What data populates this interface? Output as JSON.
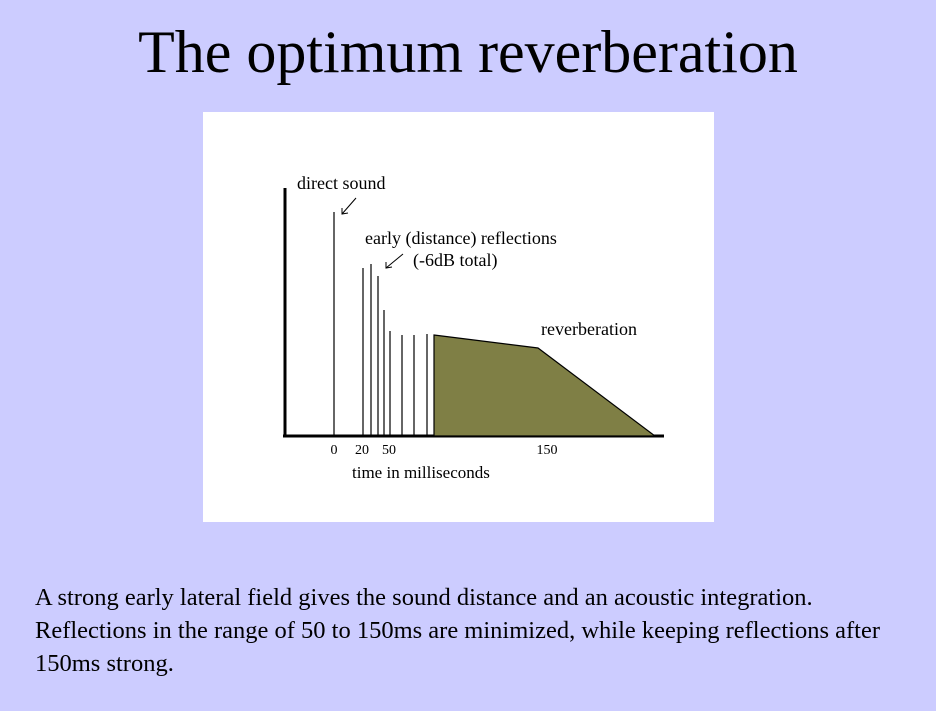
{
  "title": "The optimum reverberation",
  "diagram": {
    "labels": {
      "direct_sound": "direct sound",
      "early_reflections_line1": "early (distance) reflections",
      "early_reflections_line2": "(-6dB total)",
      "reverberation": "reverberation",
      "x_axis": "time in milliseconds"
    },
    "ticks": [
      "0",
      "20",
      "50",
      "150"
    ],
    "colors": {
      "reverb_fill": "#7f7f45",
      "lines": "#000000"
    }
  },
  "caption": "A strong early lateral field gives the sound distance and an acoustic integration.  Reflections in the range of 50 to 150ms are minimized, while keeping reflections after 150ms strong."
}
